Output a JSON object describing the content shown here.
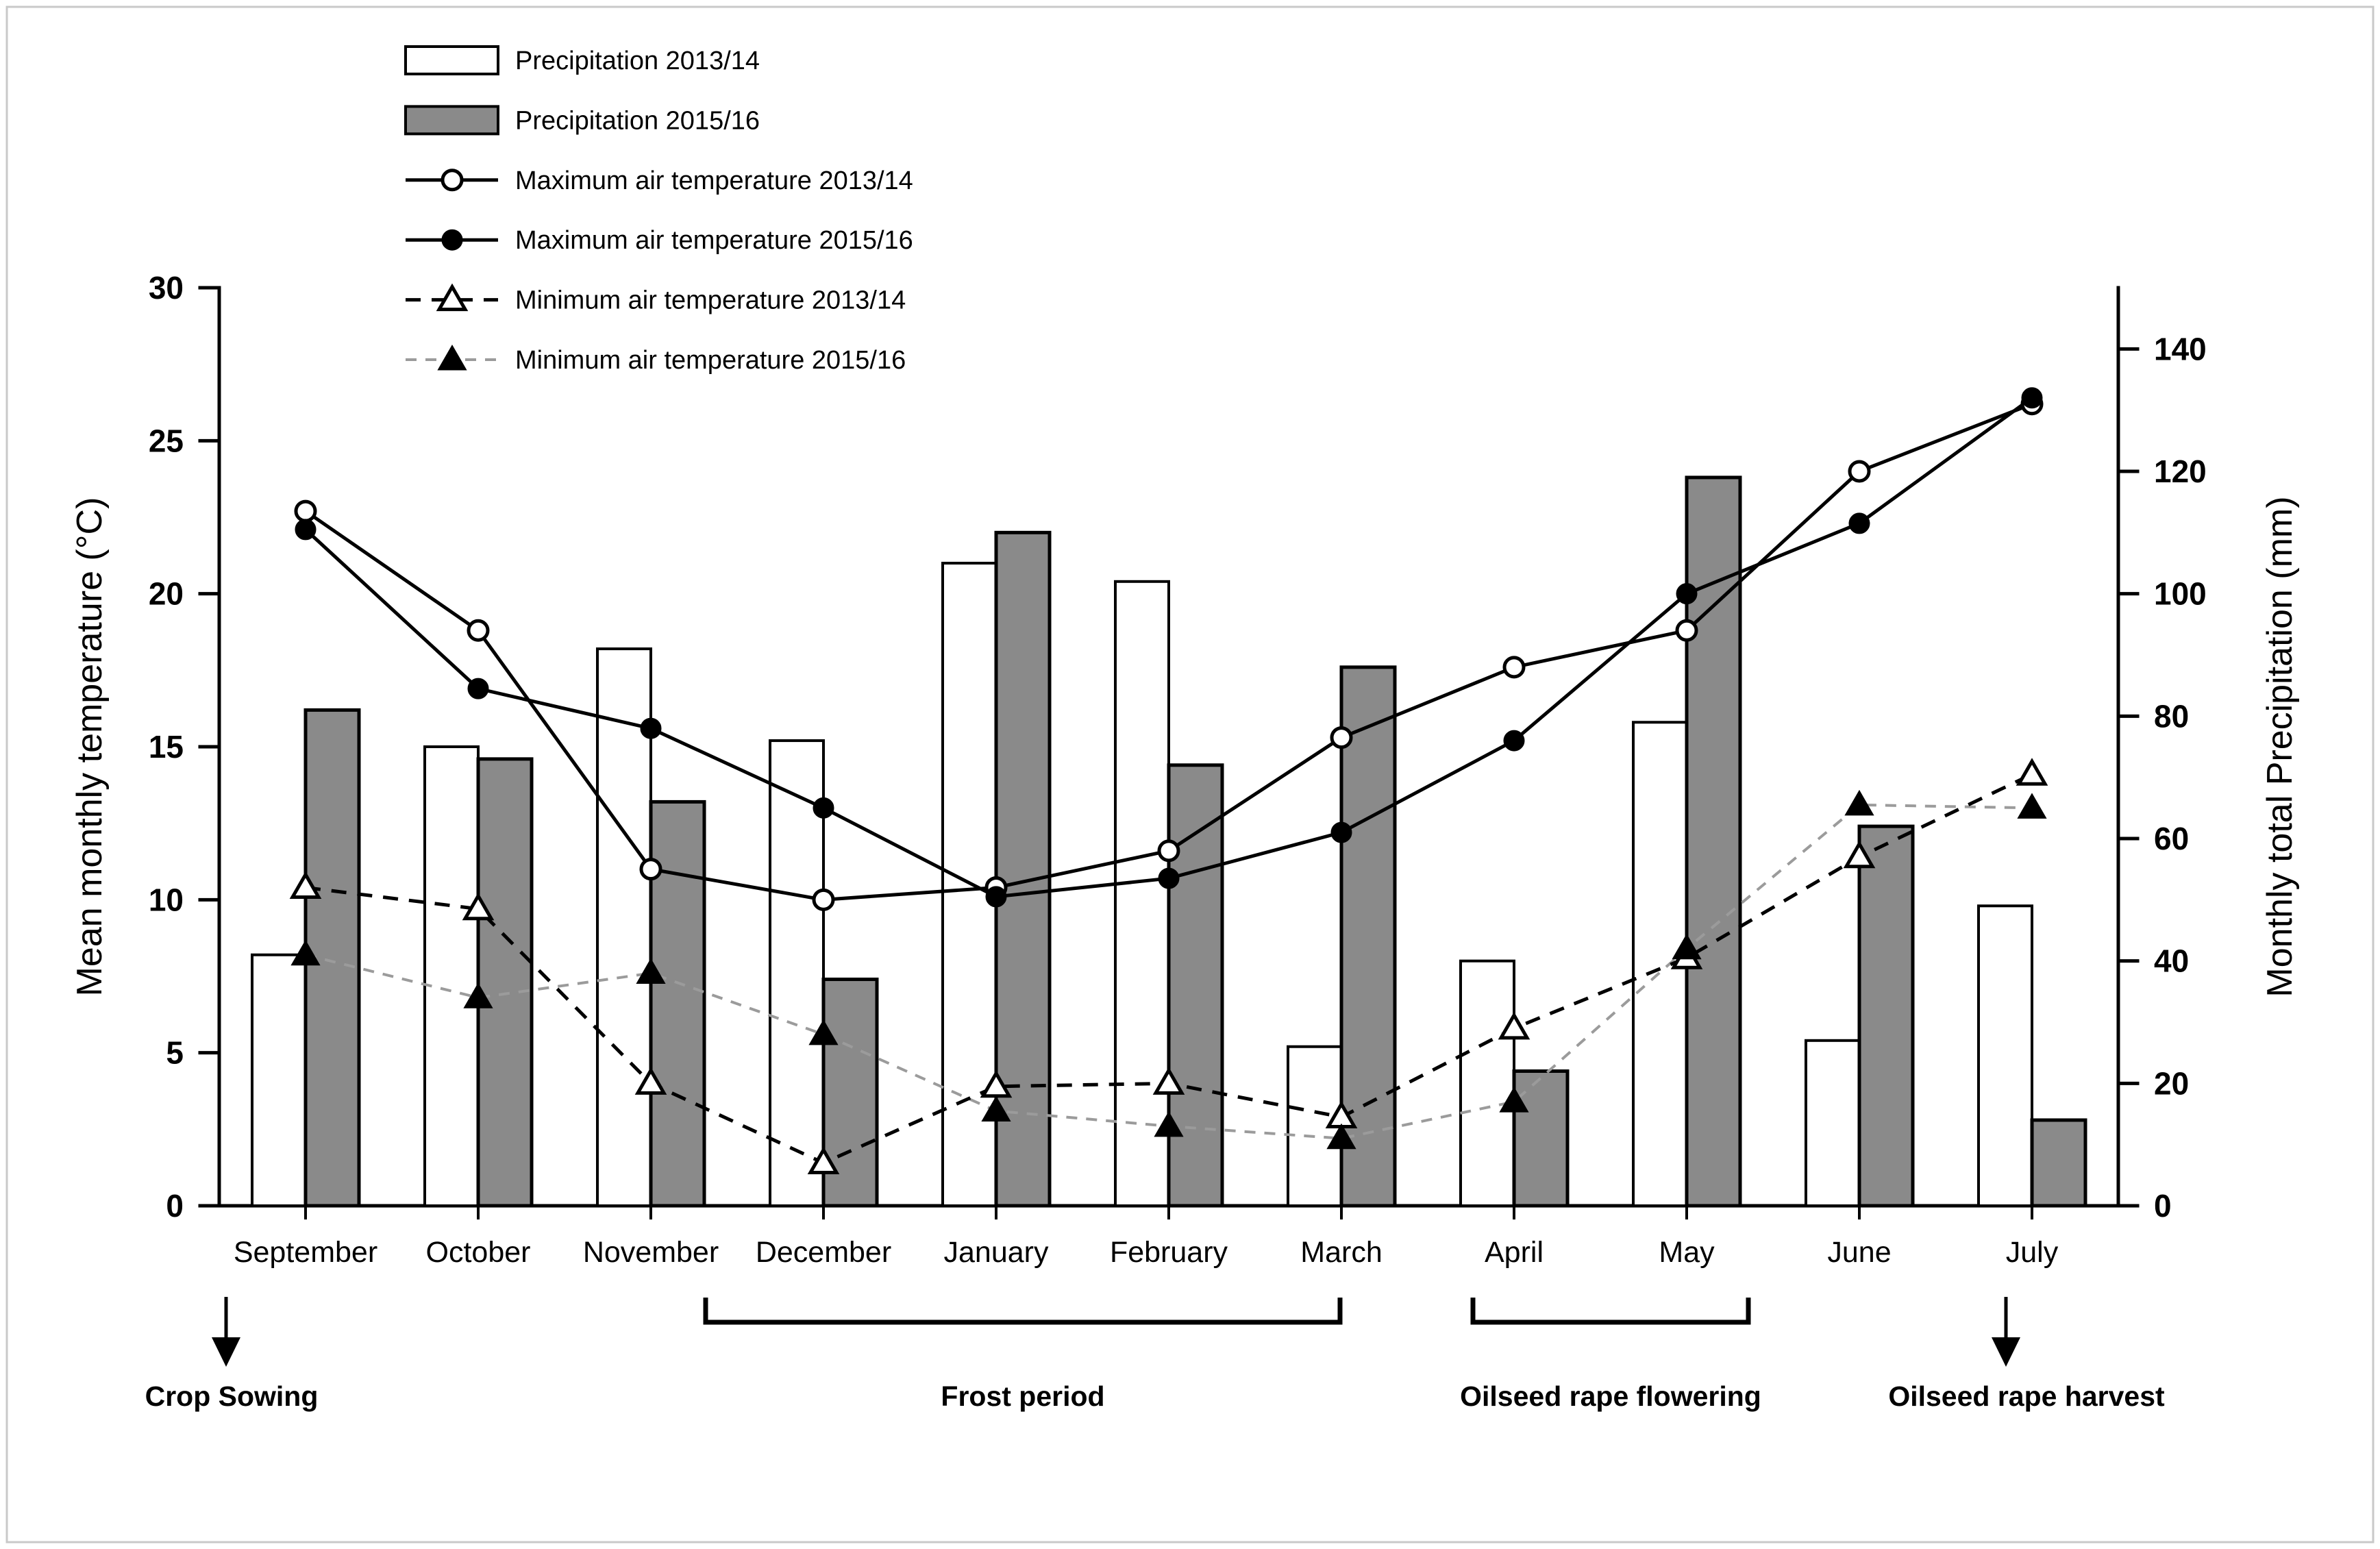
{
  "figure": {
    "background": "#ffffff",
    "border_color": "#c9c9c9"
  },
  "chart_data": {
    "type": "bar+line",
    "categories": [
      "September",
      "October",
      "November",
      "December",
      "January",
      "February",
      "March",
      "April",
      "May",
      "June",
      "July"
    ],
    "series": [
      {
        "name": "Precipitation 2013/14",
        "type": "bar",
        "axis": "right",
        "unit": "mm",
        "fill": "#ffffff",
        "values": [
          41,
          75,
          91,
          76,
          105,
          102,
          26,
          40,
          79,
          27,
          49
        ]
      },
      {
        "name": "Precipitation 2015/16",
        "type": "bar",
        "axis": "right",
        "unit": "mm",
        "fill": "#8a8a8a",
        "values": [
          81,
          73,
          66,
          37,
          110,
          72,
          88,
          22,
          119,
          62,
          14
        ]
      },
      {
        "name": "Maximum air temperature 2013/14",
        "type": "line",
        "axis": "left",
        "unit": "°C",
        "line_style": "solid",
        "line_color": "#000000",
        "marker": "circle-open",
        "values": [
          22.7,
          18.8,
          11.0,
          10.0,
          10.4,
          11.6,
          15.3,
          17.6,
          18.8,
          24.0,
          26.2
        ]
      },
      {
        "name": "Maximum air temperature 2015/16",
        "type": "line",
        "axis": "left",
        "unit": "°C",
        "line_style": "solid",
        "line_color": "#000000",
        "marker": "circle-filled",
        "values": [
          22.1,
          16.9,
          15.6,
          13.0,
          10.1,
          10.7,
          12.2,
          15.2,
          20.0,
          22.3,
          26.4
        ]
      },
      {
        "name": "Minimum air temperature 2013/14",
        "type": "line",
        "axis": "left",
        "unit": "°C",
        "line_style": "dashed",
        "line_color": "#000000",
        "marker": "triangle-open",
        "values": [
          10.4,
          9.7,
          4.0,
          1.4,
          3.9,
          4.0,
          2.9,
          5.8,
          8.1,
          11.4,
          14.1
        ]
      },
      {
        "name": "Minimum air temperature 2015/16",
        "type": "line",
        "axis": "left",
        "unit": "°C",
        "line_style": "dashed",
        "line_color": "#9b9b9b",
        "marker": "triangle-filled",
        "values": [
          8.2,
          6.8,
          7.6,
          5.6,
          3.1,
          2.6,
          2.2,
          3.4,
          8.4,
          13.1,
          13.0
        ]
      }
    ],
    "left_axis": {
      "label": "Mean monthly temperature (°C)",
      "min": 0,
      "max": 30,
      "tick_step": 5,
      "ticks": [
        0,
        5,
        10,
        15,
        20,
        25,
        30
      ]
    },
    "right_axis": {
      "label": "Monthly total Precipitation (mm)",
      "min": 0,
      "max": 140,
      "scale_max": 150,
      "tick_step": 20,
      "ticks": [
        0,
        20,
        40,
        60,
        80,
        100,
        120,
        140
      ]
    },
    "grid": false,
    "legend_position": "top-left"
  },
  "annotations": {
    "arrows": [
      {
        "label": "Crop Sowing",
        "month": "September"
      },
      {
        "label": "Oilseed rape harvest",
        "month": "July"
      }
    ],
    "brackets": [
      {
        "label": "Frost period",
        "from": "December",
        "to": "March"
      },
      {
        "label": "Oilseed rape flowering",
        "from": "April",
        "to": "May"
      }
    ]
  }
}
